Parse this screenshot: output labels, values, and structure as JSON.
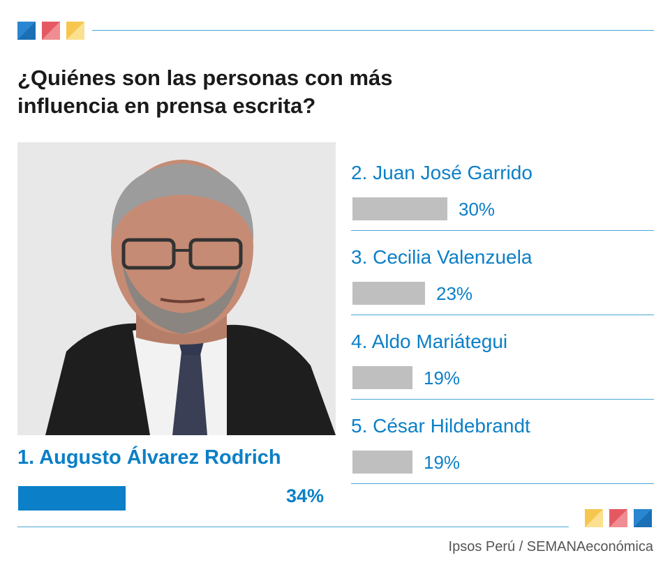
{
  "title": "¿Quiénes son las personas con más influencia en prensa escrita?",
  "source": "Ipsos Perú / SEMANAeconómica",
  "colors": {
    "accent_blue": "#0b7fc7",
    "bar_gray": "#bfbfbf",
    "rule_blue": "#4aa6d6",
    "square_blue": "#2a86d0",
    "square_red": "#e55a62",
    "square_yellow": "#f6c64f"
  },
  "photo": {
    "alt": ""
  },
  "chart_data": {
    "type": "bar",
    "categories": [
      "1. Augusto Álvarez Rodrich",
      "2. Juan José Garrido",
      "3. Cecilia Valenzuela",
      "4. Aldo Mariátegui",
      "5. César Hildebrandt"
    ],
    "values": [
      34,
      30,
      23,
      19,
      19
    ],
    "value_labels": [
      "34%",
      "30%",
      "23%",
      "19%",
      "19%"
    ],
    "title": "¿Quiénes son las personas con más influencia en prensa escrita?",
    "xlabel": "",
    "ylabel": "",
    "grid": false,
    "legend": "none"
  }
}
